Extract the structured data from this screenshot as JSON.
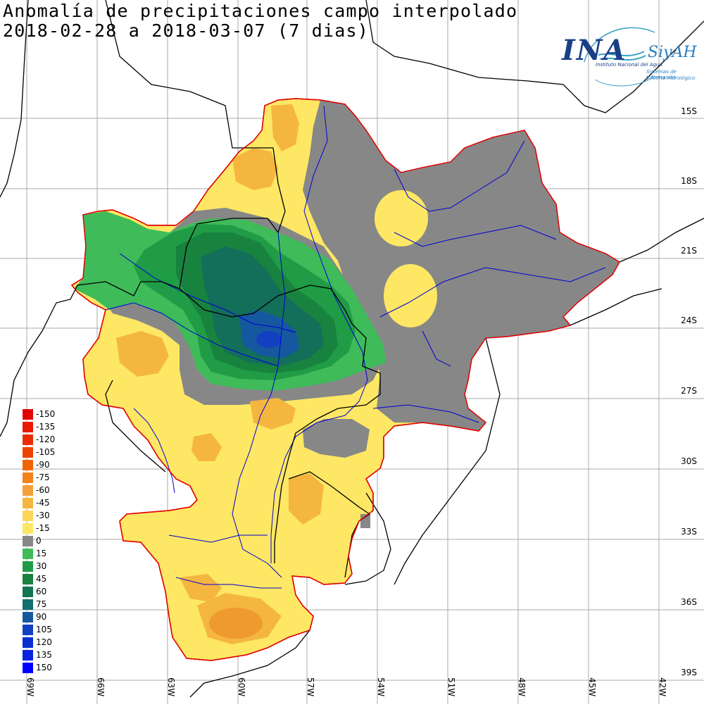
{
  "title": {
    "line1": "Anomalía de precipitaciones campo interpolado",
    "line2": "2018-02-28 a 2018-03-07 (7 dias)"
  },
  "logo": {
    "mark": "INA",
    "name": "SiyAH",
    "subtitle1": "Instituto Nacional del Agua",
    "subtitle2": "Sistemas de Información",
    "subtitle3": "y Alerta Hidrológico"
  },
  "map": {
    "lat_labels": [
      "15S",
      "18S",
      "21S",
      "24S",
      "27S",
      "30S",
      "33S",
      "36S",
      "39S"
    ],
    "lon_labels": [
      "69W",
      "66W",
      "63W",
      "60W",
      "57W",
      "54W",
      "51W",
      "48W",
      "45W",
      "42W"
    ],
    "colors": {
      "gray_zero": "#878787",
      "light_yellow": "#fde764",
      "orange": "#f5b640",
      "dark_orange": "#ef9a2e",
      "green_15": "#3fbb5a",
      "green_30": "#1f9c45",
      "green_45": "#18823f",
      "teal_60": "#136e5a",
      "blue_75": "#1558a0",
      "basin_outline": "#e00000",
      "rivers": "#0000d8"
    }
  },
  "legend": {
    "items": [
      {
        "label": "-150",
        "color": "#e40000"
      },
      {
        "label": "-135",
        "color": "#e81a00"
      },
      {
        "label": "-120",
        "color": "#ea2d00"
      },
      {
        "label": "-105",
        "color": "#ee4300"
      },
      {
        "label": "-90",
        "color": "#f06400"
      },
      {
        "label": "-75",
        "color": "#f3821b"
      },
      {
        "label": "-60",
        "color": "#f4a03a"
      },
      {
        "label": "-45",
        "color": "#f5b640"
      },
      {
        "label": "-30",
        "color": "#fbd658"
      },
      {
        "label": "-15",
        "color": "#fde764"
      },
      {
        "label": "0",
        "color": "#878787"
      },
      {
        "label": "15",
        "color": "#3fbb5a"
      },
      {
        "label": "30",
        "color": "#1f9c45"
      },
      {
        "label": "45",
        "color": "#18823f"
      },
      {
        "label": "60",
        "color": "#0f7552"
      },
      {
        "label": "75",
        "color": "#136e6e"
      },
      {
        "label": "90",
        "color": "#1558a0"
      },
      {
        "label": "105",
        "color": "#1340c0"
      },
      {
        "label": "120",
        "color": "#0c2fd2"
      },
      {
        "label": "135",
        "color": "#0a22e0"
      },
      {
        "label": "150",
        "color": "#0000ff"
      }
    ]
  }
}
